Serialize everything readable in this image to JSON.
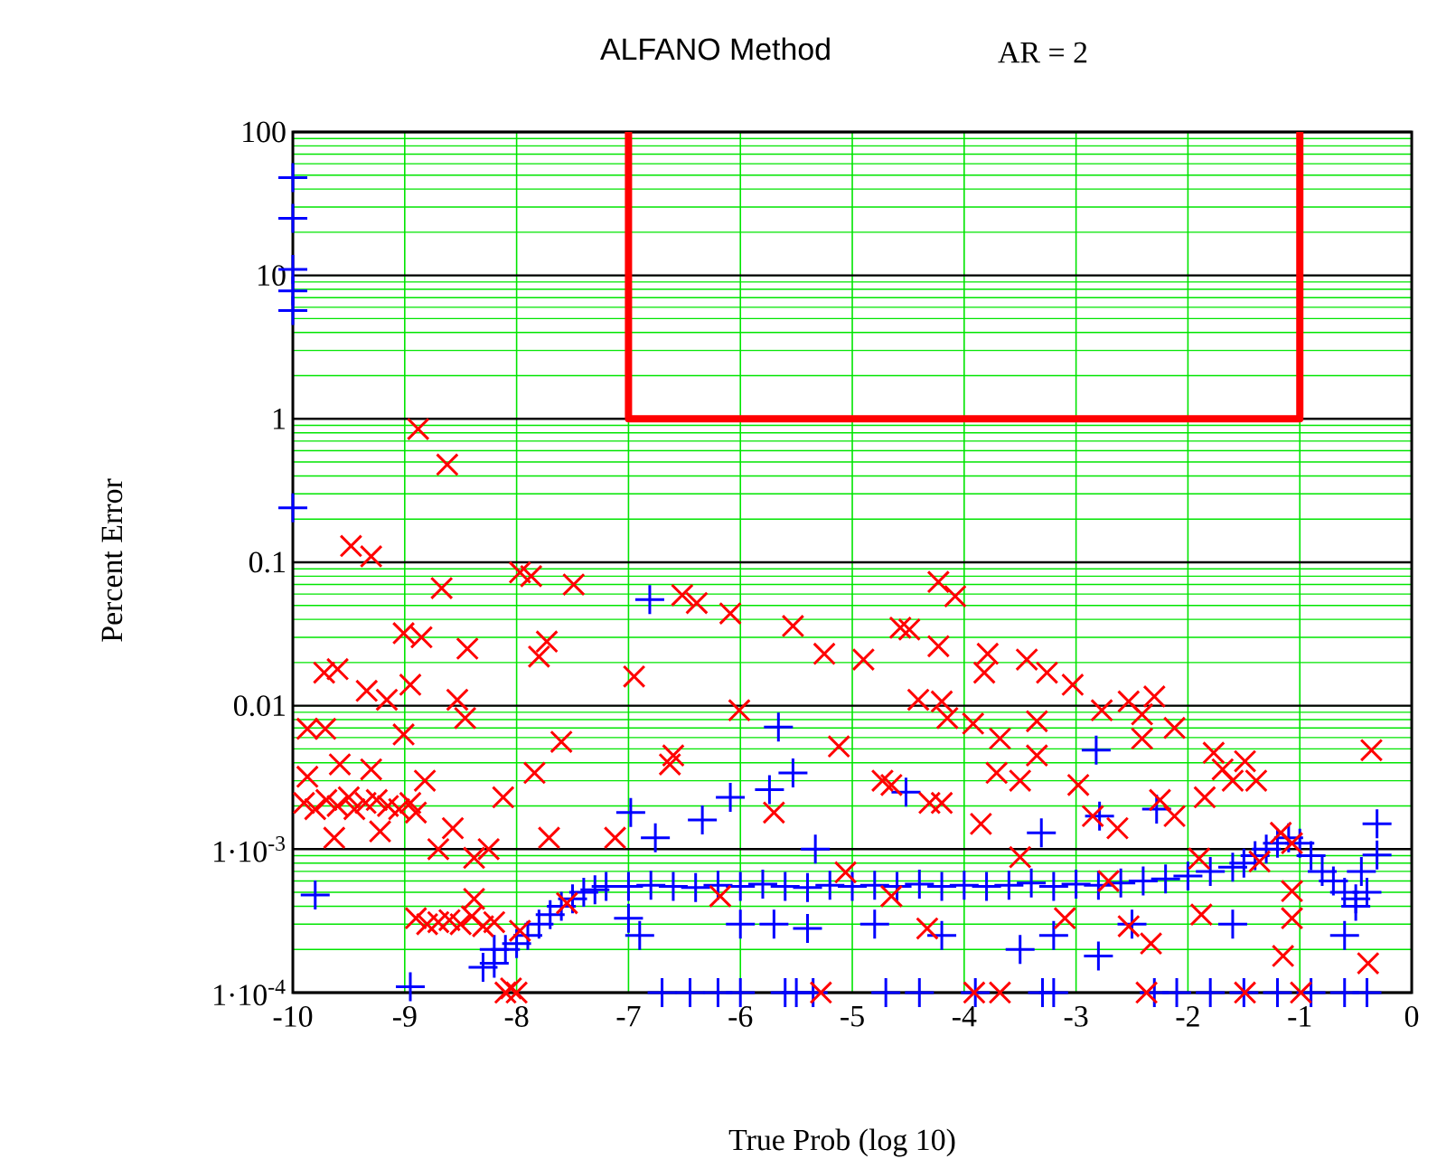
{
  "chart_data": {
    "type": "scatter",
    "title": "ALFANO Method",
    "annotations": [
      "AR = 2"
    ],
    "xlabel": "True Prob (log 10)",
    "ylabel": "Percent Error",
    "log": "y",
    "grid": true,
    "xlim": [
      -10,
      0
    ],
    "xticks": [
      -10,
      -9,
      -8,
      -7,
      -6,
      -5,
      -4,
      -3,
      -2,
      -1,
      0
    ],
    "ylim": [
      0.0001,
      100
    ],
    "yticks": [
      {
        "value": 0.0001,
        "label": "1·10$^{-4}$"
      },
      {
        "value": 0.001,
        "label": "1·10$^{-3}$"
      },
      0.01,
      0.1,
      1,
      10,
      100
    ],
    "series": [
      {
        "type": "scatter",
        "marker": "plus",
        "color": "#0000ff",
        "x": [
          -10,
          -10,
          -10,
          -10,
          -10,
          -10,
          -9.8,
          -8.95,
          -8.3,
          -8.2,
          -8.1,
          -8.0,
          -7.9,
          -7.8,
          -7.7,
          -7.6,
          -7.5,
          -7.4,
          -7.3,
          -7.2,
          -7.0,
          -6.8,
          -6.6,
          -6.4,
          -6.2,
          -6.0,
          -5.8,
          -5.6,
          -5.4,
          -5.2,
          -5.0,
          -4.8,
          -4.6,
          -4.4,
          -4.2,
          -4.0,
          -3.8,
          -3.6,
          -3.4,
          -3.2,
          -3.0,
          -2.8,
          -2.6,
          -2.4,
          -2.2,
          -2.0,
          -1.8,
          -1.6,
          -1.5,
          -1.4,
          -1.3,
          -1.2,
          -1.1,
          -1.0,
          -0.9,
          -0.8,
          -0.7,
          -0.6,
          -0.5,
          -0.4,
          -6.81,
          -6.98,
          -6.34,
          -6.09,
          -5.66,
          -5.53,
          -6.76,
          -5.74,
          -5.33,
          -2.82,
          -4.52,
          -3.31,
          -2.79,
          -2.28,
          -0.31,
          -0.31,
          -0.45,
          -7.0,
          -6.9,
          -8.2,
          -6.0,
          -5.7,
          -5.4,
          -4.8,
          -4.2,
          -3.5,
          -3.2,
          -2.8,
          -2.5,
          -1.6,
          -0.6,
          -0.5,
          -6.7,
          -6.45,
          -6.2,
          -6.0,
          -5.6,
          -5.5,
          -5.35,
          -4.7,
          -4.4,
          -3.9,
          -3.3,
          -3.2,
          -2.3,
          -2.1,
          -1.8,
          -1.5,
          -1.2,
          -0.9,
          -0.6,
          -0.4
        ],
        "values": [
          48,
          25,
          11,
          7.8,
          5.7,
          0.24,
          0.00048,
          0.00011,
          0.00015,
          0.0002,
          0.0002,
          0.00022,
          0.00025,
          0.0003,
          0.00035,
          0.0004,
          0.00045,
          0.0005,
          0.00052,
          0.00055,
          0.00055,
          0.00056,
          0.00055,
          0.00054,
          0.00056,
          0.00055,
          0.00057,
          0.00055,
          0.00054,
          0.00056,
          0.00055,
          0.00056,
          0.00055,
          0.00057,
          0.00055,
          0.00056,
          0.00055,
          0.00056,
          0.00058,
          0.00055,
          0.00057,
          0.00056,
          0.00058,
          0.0006,
          0.00062,
          0.00065,
          0.0007,
          0.00075,
          0.0008,
          0.0009,
          0.001,
          0.0011,
          0.0012,
          0.0011,
          0.0009,
          0.0007,
          0.0006,
          0.0005,
          0.00045,
          0.0005,
          0.055,
          0.0018,
          0.0016,
          0.0023,
          0.0071,
          0.0034,
          0.0012,
          0.0026,
          0.001,
          0.0049,
          0.0025,
          0.0013,
          0.0017,
          0.0019,
          0.0015,
          0.00091,
          0.0007,
          0.00033,
          0.00025,
          0.00016,
          0.0003,
          0.0003,
          0.00028,
          0.0003,
          0.00025,
          0.0002,
          0.00025,
          0.00018,
          0.0003,
          0.0003,
          0.00025,
          0.0004,
          0.0001,
          0.0001,
          0.0001,
          0.0001,
          0.0001,
          0.0001,
          0.0001,
          0.0001,
          0.0001,
          0.0001,
          0.0001,
          0.0001,
          0.0001,
          0.0001,
          0.0001,
          0.0001,
          0.0001,
          0.0001,
          0.0001,
          0.0001
        ]
      },
      {
        "type": "scatter",
        "marker": "cross",
        "color": "#ff0000",
        "x": [
          -8.88,
          -8.62,
          -9.48,
          -9.3,
          -8.67,
          -7.97,
          -7.87,
          -7.49,
          -6.52,
          -6.39,
          -6.09,
          -5.53,
          -9.01,
          -8.85,
          -8.44,
          -7.73,
          -7.8,
          -9.72,
          -9.6,
          -9.34,
          -9.16,
          -8.95,
          -8.53,
          -8.46,
          -6.95,
          -6.01,
          -5.25,
          -9.87,
          -9.71,
          -9.01,
          -7.6,
          -7.84,
          -8.12,
          -6.6,
          -6.63,
          -5.12,
          -5.7,
          -7.12,
          -7.71,
          -8.7,
          -8.57,
          -8.25,
          -8.38,
          -9.63,
          -9.22,
          -8.82,
          -9.87,
          -9.58,
          -9.3,
          -9.9,
          -9.8,
          -9.7,
          -9.6,
          -9.5,
          -9.45,
          -9.35,
          -9.25,
          -9.15,
          -9.05,
          -8.95,
          -8.9,
          -8.9,
          -8.8,
          -8.7,
          -8.6,
          -8.5,
          -8.4,
          -8.3,
          -8.2,
          -8.38,
          -7.55,
          -7.97,
          -6.18,
          -8.1,
          -8.05,
          -8.0,
          -5.28,
          -4.23,
          -4.08,
          -4.57,
          -4.49,
          -4.23,
          -4.9,
          -3.79,
          -3.82,
          -3.44,
          -3.26,
          -3.03,
          -4.41,
          -4.2,
          -4.15,
          -3.92,
          -3.35,
          -2.77,
          -2.53,
          -2.3,
          -2.41,
          -2.12,
          -2.41,
          -3.68,
          -3.35,
          -3.71,
          -3.5,
          -2.98,
          -1.77,
          -1.49,
          -1.69,
          -1.39,
          -1.6,
          -1.85,
          -2.25,
          -2.12,
          -2.85,
          -2.63,
          -4.73,
          -4.65,
          -4.31,
          -4.2,
          -3.85,
          -3.5,
          -1.9,
          -1.36,
          -1.17,
          -1.07,
          -0.36,
          -2.71,
          -4.65,
          -5.06,
          -4.33,
          -3.1,
          -2.53,
          -2.33,
          -1.88,
          -1.07,
          -1.07,
          -1.15,
          -0.39,
          -2.37,
          -1.49,
          -0.99,
          -3.91,
          -3.68
        ],
        "values": [
          0.85,
          0.48,
          0.13,
          0.11,
          0.066,
          0.085,
          0.08,
          0.07,
          0.059,
          0.052,
          0.044,
          0.036,
          0.032,
          0.03,
          0.025,
          0.028,
          0.022,
          0.017,
          0.018,
          0.0127,
          0.011,
          0.014,
          0.011,
          0.0082,
          0.016,
          0.0093,
          0.023,
          0.0069,
          0.0069,
          0.0063,
          0.0056,
          0.0034,
          0.0023,
          0.0045,
          0.0039,
          0.0052,
          0.0018,
          0.0012,
          0.0012,
          0.001,
          0.0014,
          0.001,
          0.00087,
          0.0012,
          0.00133,
          0.003,
          0.0032,
          0.0039,
          0.0036,
          0.0021,
          0.0019,
          0.0022,
          0.002,
          0.0023,
          0.0019,
          0.0021,
          0.0022,
          0.002,
          0.0019,
          0.0021,
          0.0018,
          0.00033,
          0.0003,
          0.00031,
          0.00032,
          0.0003,
          0.00034,
          0.00029,
          0.00031,
          0.00045,
          0.00042,
          0.00027,
          0.00047,
          0.0001,
          0.000107,
          0.0001,
          0.0001,
          0.073,
          0.058,
          0.035,
          0.034,
          0.026,
          0.021,
          0.023,
          0.017,
          0.021,
          0.017,
          0.014,
          0.011,
          0.0107,
          0.0082,
          0.0075,
          0.0078,
          0.0093,
          0.0107,
          0.0116,
          0.0087,
          0.007,
          0.0059,
          0.0059,
          0.0045,
          0.0034,
          0.003,
          0.0028,
          0.0047,
          0.0041,
          0.0036,
          0.003,
          0.003,
          0.0023,
          0.0022,
          0.0017,
          0.0017,
          0.0014,
          0.003,
          0.0028,
          0.0021,
          0.0021,
          0.0015,
          0.00088,
          0.00086,
          0.00082,
          0.0013,
          0.0011,
          0.0049,
          0.0006,
          0.00047,
          0.00069,
          0.00028,
          0.00033,
          0.00029,
          0.00022,
          0.00035,
          0.00051,
          0.00033,
          0.00018,
          0.00016,
          0.0001,
          0.0001,
          0.0001,
          0.0001,
          0.0001
        ]
      },
      {
        "type": "line",
        "color": "#ff0000",
        "x": [
          -7,
          -7,
          -1,
          -1
        ],
        "values": [
          100,
          1,
          1,
          100
        ]
      }
    ]
  }
}
